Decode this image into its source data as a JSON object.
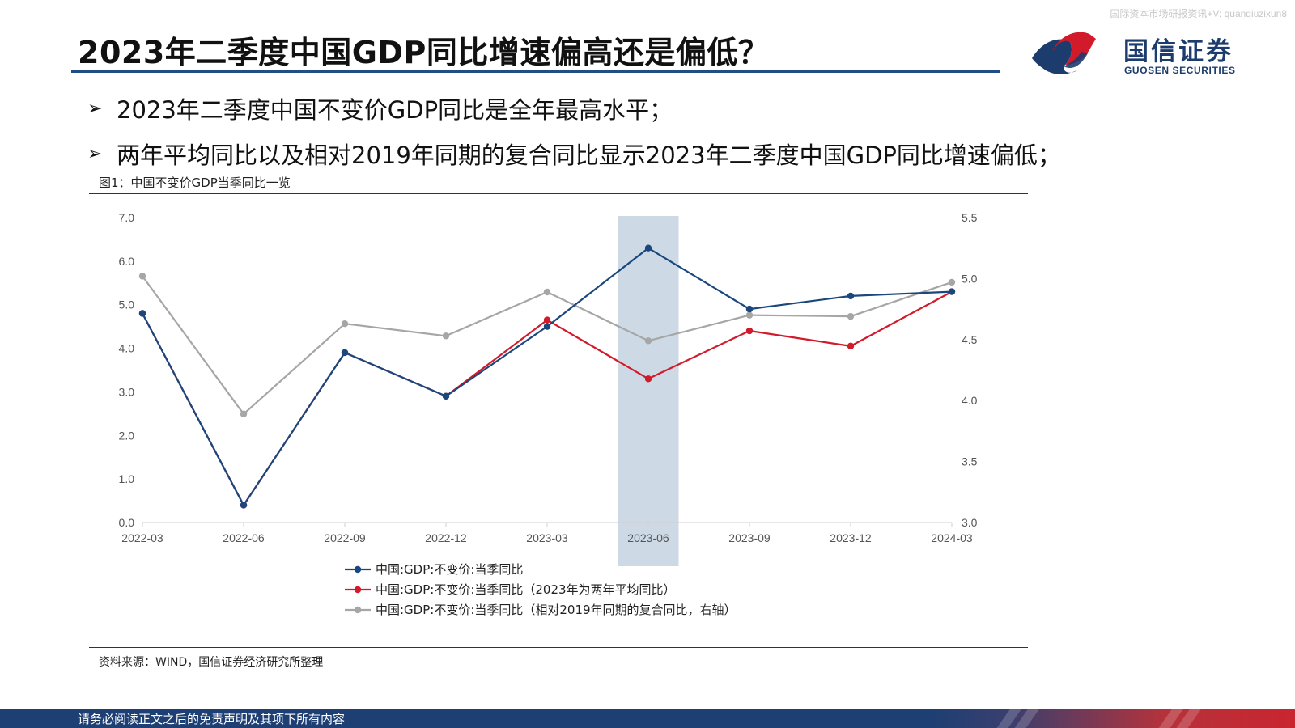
{
  "watermark": "国际资本市场研报资讯+V: quanqiuzixun8",
  "title": "2023年二季度中国GDP同比增速偏高还是偏低？",
  "logo": {
    "cn": "国信证券",
    "en": "GUOSEN SECURITIES"
  },
  "bullets": [
    "2023年二季度中国不变价GDP同比是全年最高水平；",
    "两年平均同比以及相对2019年同期的复合同比显示2023年二季度中国GDP同比增速偏低；"
  ],
  "figure": {
    "caption": "图1：中国不变价GDP当季同比一览",
    "source": "资料来源：WIND，国信证券经济研究所整理"
  },
  "footer": {
    "text": "请务必阅读正文之后的免责声明及其项下所有内容"
  },
  "colors": {
    "brand_navy": "#1f4e87",
    "series1": "#1a477d",
    "series2": "#d11a2a",
    "series3": "#a6a6a6",
    "highlight": "#c8d6e2"
  },
  "chart_data": {
    "type": "line",
    "categories": [
      "2022-03",
      "2022-06",
      "2022-09",
      "2022-12",
      "2023-03",
      "2023-06",
      "2023-09",
      "2023-12",
      "2024-03"
    ],
    "left_axis": {
      "ylim": [
        0,
        7
      ],
      "ticks": [
        "0.0",
        "1.0",
        "2.0",
        "3.0",
        "4.0",
        "5.0",
        "6.0",
        "7.0"
      ]
    },
    "right_axis": {
      "ylim": [
        3.0,
        5.5
      ],
      "ticks": [
        "3.0",
        "3.5",
        "4.0",
        "4.5",
        "5.0",
        "5.5"
      ]
    },
    "highlight_category": "2023-06",
    "series": [
      {
        "name": "中国:GDP:不变价:当季同比",
        "axis": "left",
        "color": "#1a477d",
        "values": [
          4.8,
          0.4,
          3.9,
          2.9,
          4.5,
          6.3,
          4.9,
          5.2,
          5.3
        ]
      },
      {
        "name": "中国:GDP:不变价:当季同比（2023年为两年平均同比）",
        "axis": "left",
        "color": "#d11a2a",
        "values": [
          4.8,
          0.4,
          3.9,
          2.9,
          4.65,
          3.3,
          4.4,
          4.05,
          5.3
        ]
      },
      {
        "name": "中国:GDP:不变价:当季同比（相对2019年同期的复合同比，右轴）",
        "axis": "right",
        "color": "#a6a6a6",
        "values": [
          5.02,
          3.89,
          4.63,
          4.53,
          4.89,
          4.49,
          4.7,
          4.69,
          4.97
        ]
      }
    ],
    "legend_position": "bottom",
    "grid": false
  }
}
